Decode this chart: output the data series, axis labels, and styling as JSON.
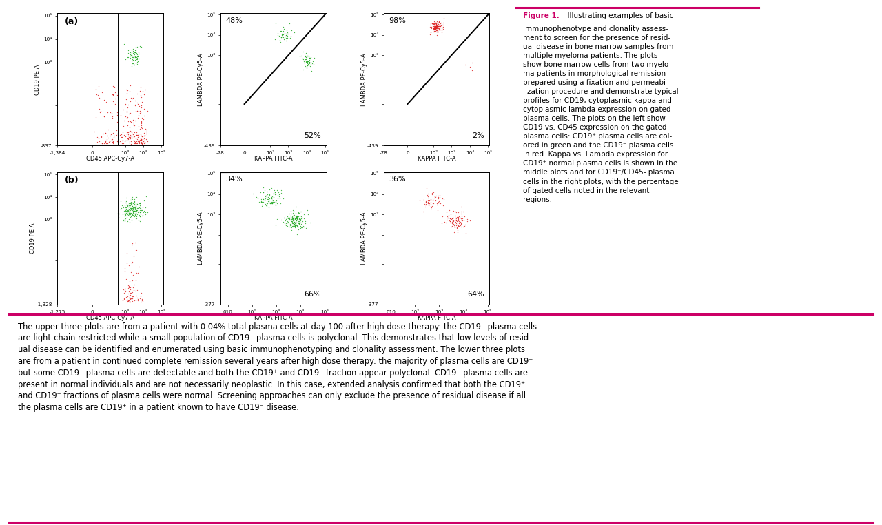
{
  "bg_color": "#ffffff",
  "figure_width": 12.8,
  "figure_height": 7.62,
  "magenta_color": "#cc0066",
  "scatter_green": "#22aa22",
  "scatter_red": "#dd2222",
  "figure_caption_bold": "Figure 1.",
  "caption_lines": [
    "  Illustrating examples of basic",
    "immunophenotype and clonality assess-",
    "ment to screen for the presence of resid-",
    "ual disease in bone marrow samples from",
    "multiple myeloma patients. The plots",
    "show bone marrow cells from two myelo-",
    "ma patients in morphological remission",
    "prepared using a fixation and permeabi-",
    "lization procedure and demonstrate typical",
    "profiles for CD19, cytoplasmic kappa and",
    "cytoplasmic lambda expression on gated",
    "plasma cells. The plots on the left show",
    "CD19 vs. CD45 expression on the gated",
    "plasma cells: CD19⁺ plasma cells are col-",
    "ored in green and the CD19⁻ plasma cells",
    "in red. Kappa vs. Lambda expression for",
    "CD19⁺ normal plasma cells is shown in the",
    "middle plots and for CD19⁻/CD45- plasma",
    "cells in the right plots, with the percentage",
    "of gated cells noted in the relevant",
    "regions."
  ],
  "bottom_lines": [
    "The upper three plots are from a patient with 0.04% total plasma cells at day 100 after high dose therapy: the CD19⁻ plasma cells",
    "are light-chain restricted while a small population of CD19⁺ plasma cells is polyclonal. This demonstrates that low levels of resid-",
    "ual disease can be identified and enumerated using basic immunophenotyping and clonality assessment. The lower three plots",
    "are from a patient in continued complete remission several years after high dose therapy: the majority of plasma cells are CD19⁺",
    "but some CD19⁻ plasma cells are detectable and both the CD19⁺ and CD19⁻ fraction appear polyclonal. CD19⁻ plasma cells are",
    "present in normal individuals and are not necessarily neoplastic. In this case, extended analysis confirmed that both the CD19⁺",
    "and CD19⁻ fractions of plasma cells were normal. Screening approaches can only exclude the presence of residual disease if all",
    "the plasma cells are CD19⁺ in a patient known to have CD19⁻ disease."
  ]
}
